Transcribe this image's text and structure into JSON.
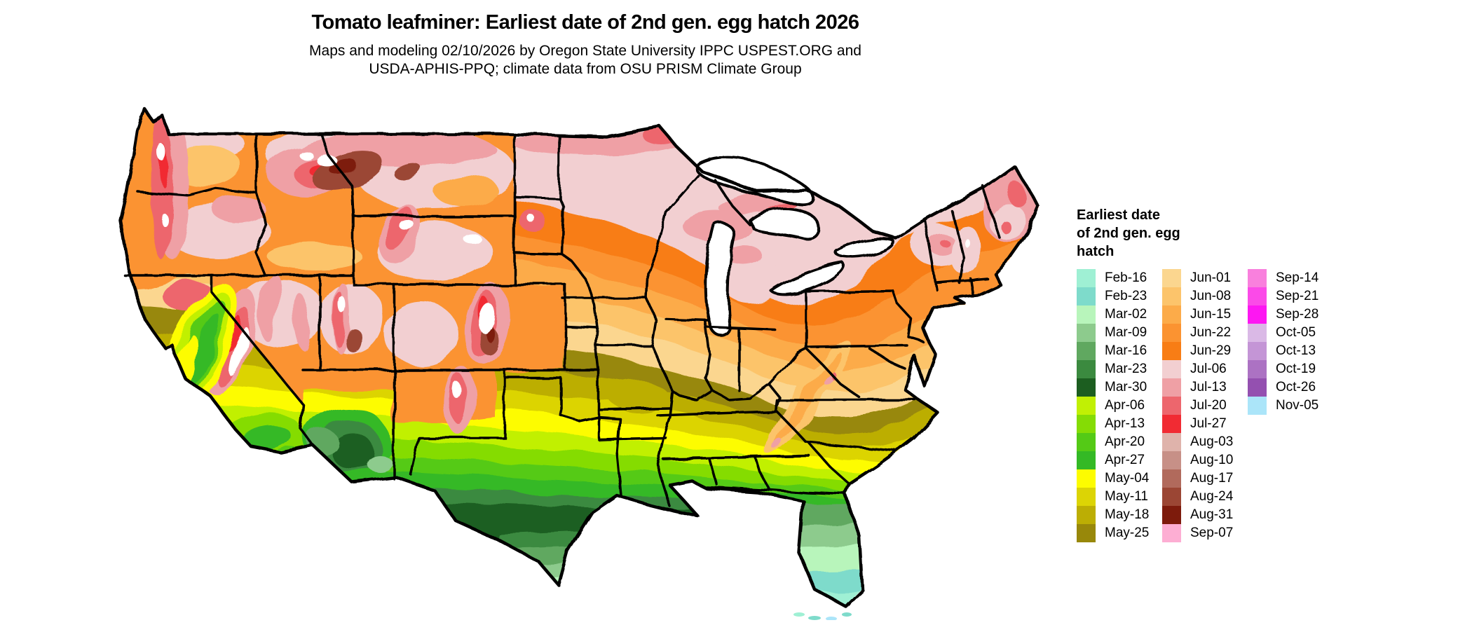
{
  "title": "Tomato leafminer: Earliest date of 2nd gen. egg hatch 2026",
  "subtitle_line1": "Maps and modeling 02/10/2026 by Oregon State University IPPC USPEST.ORG and",
  "subtitle_line2": "USDA-APHIS-PPQ; climate data from OSU PRISM Climate Group",
  "legend": {
    "title_lines": [
      "Earliest date",
      "of 2nd gen. egg",
      "hatch"
    ],
    "columns": [
      [
        {
          "label": "Feb-16",
          "color": "#9ff0d4"
        },
        {
          "label": "Feb-23",
          "color": "#7edbcb"
        },
        {
          "label": "Mar-02",
          "color": "#b8f5bb"
        },
        {
          "label": "Mar-09",
          "color": "#8dcb8d"
        },
        {
          "label": "Mar-16",
          "color": "#60a860"
        },
        {
          "label": "Mar-23",
          "color": "#3b8a3f"
        },
        {
          "label": "Mar-30",
          "color": "#1c5e20"
        },
        {
          "label": "Apr-06",
          "color": "#c1f004"
        },
        {
          "label": "Apr-13",
          "color": "#85dc05"
        },
        {
          "label": "Apr-20",
          "color": "#54ca16"
        },
        {
          "label": "Apr-27",
          "color": "#34b925"
        },
        {
          "label": "May-04",
          "color": "#fdfc00"
        },
        {
          "label": "May-11",
          "color": "#dcd405"
        },
        {
          "label": "May-18",
          "color": "#bcae04"
        },
        {
          "label": "May-25",
          "color": "#98880a"
        }
      ],
      [
        {
          "label": "Jun-01",
          "color": "#fbd68f"
        },
        {
          "label": "Jun-08",
          "color": "#fcc46b"
        },
        {
          "label": "Jun-15",
          "color": "#fcab49"
        },
        {
          "label": "Jun-22",
          "color": "#fb9331"
        },
        {
          "label": "Jun-29",
          "color": "#f87d15"
        },
        {
          "label": "Jul-06",
          "color": "#f2cfd1"
        },
        {
          "label": "Jul-13",
          "color": "#efa0a5"
        },
        {
          "label": "Jul-20",
          "color": "#ed666d"
        },
        {
          "label": "Jul-27",
          "color": "#f12b33"
        },
        {
          "label": "Aug-03",
          "color": "#dfb3ab"
        },
        {
          "label": "Aug-10",
          "color": "#c79087"
        },
        {
          "label": "Aug-17",
          "color": "#b16a5c"
        },
        {
          "label": "Aug-24",
          "color": "#9b4634"
        },
        {
          "label": "Aug-31",
          "color": "#7d1b0c"
        },
        {
          "label": "Sep-07",
          "color": "#fdaed3"
        }
      ],
      [
        {
          "label": "Sep-14",
          "color": "#f980dd"
        },
        {
          "label": "Sep-21",
          "color": "#fb4ae8"
        },
        {
          "label": "Sep-28",
          "color": "#fd17f2"
        },
        {
          "label": "Oct-05",
          "color": "#dab9e6"
        },
        {
          "label": "Oct-13",
          "color": "#c495d6"
        },
        {
          "label": "Oct-19",
          "color": "#ac72c3"
        },
        {
          "label": "Oct-26",
          "color": "#9450b0"
        },
        {
          "label": "Nov-05",
          "color": "#abe5f9"
        }
      ]
    ]
  }
}
